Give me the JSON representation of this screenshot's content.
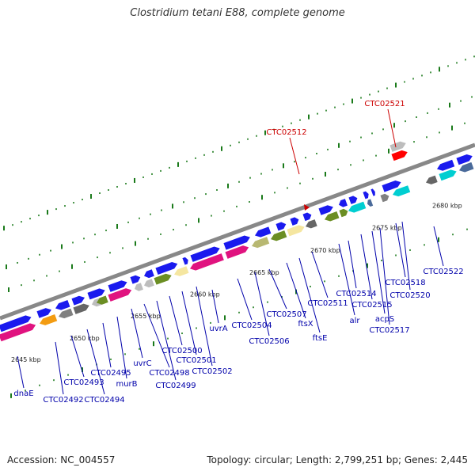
{
  "title": "Clostridium tetani E88, complete genome",
  "footer": {
    "accession": "Accession: NC_004557",
    "info": "Topology: circular; Length: 2,799,251 bp; Genes: 2,445"
  },
  "colors": {
    "forward_gene": "#1a1aee",
    "reverse_gene": "#1a1aee",
    "label_blue": "#0000aa",
    "label_red": "#cc0000",
    "backbone": "#888888",
    "tick": "#1a7a1a",
    "cds_palette": [
      "#e0137f",
      "#f39c12",
      "#808080",
      "#666666",
      "#6b8e23",
      "#bdbdbd",
      "#f5e6a0",
      "#00ced1",
      "#7cbb00",
      "#b8b872",
      "#ff0000",
      "#4a6a9a"
    ]
  },
  "ruler": {
    "labels": [
      "2645 kbp",
      "2650 kbp",
      "2655 kbp",
      "2660 kbp",
      "2665 kbp",
      "2670 kbp",
      "2675 kbp",
      "2680 kbp"
    ]
  },
  "genes_blue": [
    "dnaE",
    "CTC02492",
    "CTC02493",
    "CTC02494",
    "CTC02495",
    "murB",
    "uvrC",
    "CTC02498",
    "CTC02499",
    "CTC02500",
    "CTC02501",
    "CTC02502",
    "uvrA",
    "CTC02504",
    "CTC02506",
    "CTC02507",
    "ftsX",
    "ftsE",
    "CTC02511",
    "alr",
    "CTC02514",
    "CTC02515",
    "acpS",
    "CTC02517",
    "CTC02518",
    "CTC02520",
    "CTC02522"
  ],
  "genes_red": [
    "CTC02512",
    "CTC02521"
  ]
}
